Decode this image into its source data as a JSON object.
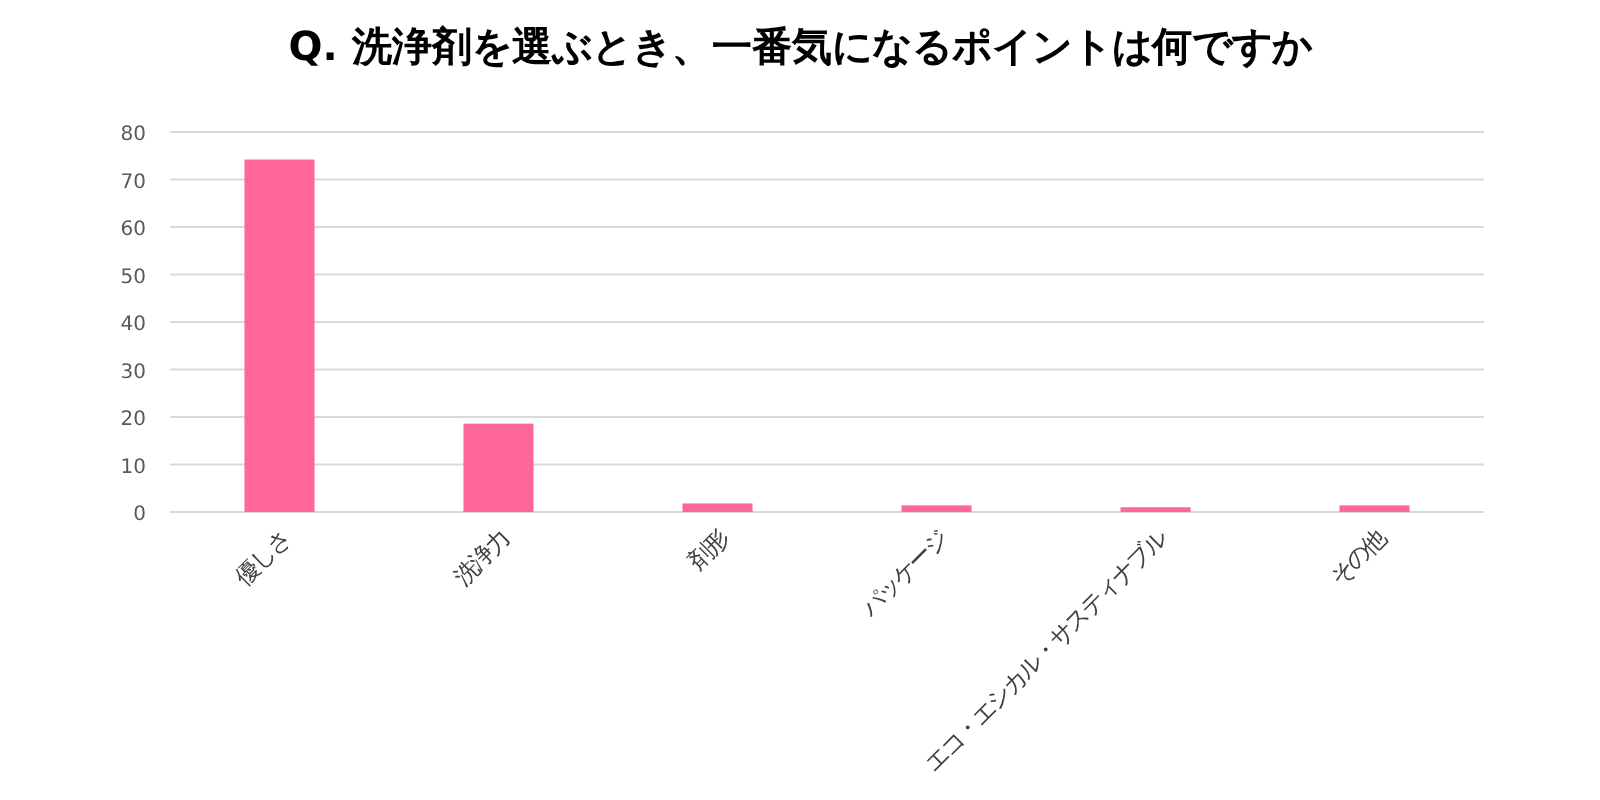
{
  "chart_data": {
    "type": "bar",
    "title": "Q. 洗浄剤を選ぶとき、一番気になるポイントは何ですか",
    "categories": [
      "優しさ",
      "洗浄力",
      "剤形",
      "パッケージ",
      "エコ・エシカル・サスティナブル",
      "その他"
    ],
    "values": [
      74.2,
      18.6,
      1.8,
      1.4,
      1.0,
      1.4
    ],
    "color": "#ff6699",
    "ylim": [
      0,
      80
    ],
    "yticks": [
      0,
      10,
      20,
      30,
      40,
      50,
      60,
      70,
      80
    ],
    "grid": "y"
  }
}
